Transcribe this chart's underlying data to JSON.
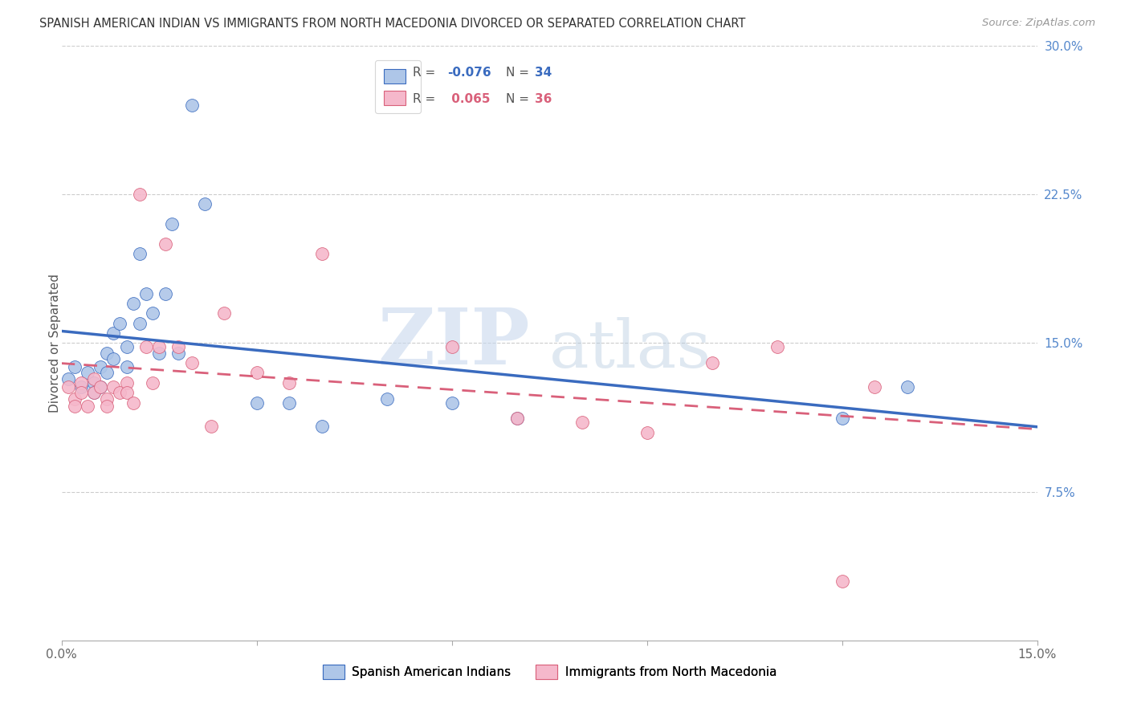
{
  "title": "SPANISH AMERICAN INDIAN VS IMMIGRANTS FROM NORTH MACEDONIA DIVORCED OR SEPARATED CORRELATION CHART",
  "source": "Source: ZipAtlas.com",
  "ylabel": "Divorced or Separated",
  "legend_blue_r": "-0.076",
  "legend_blue_n": "34",
  "legend_pink_r": "0.065",
  "legend_pink_n": "36",
  "legend_blue_label": "Spanish American Indians",
  "legend_pink_label": "Immigrants from North Macedonia",
  "blue_color": "#aec6e8",
  "pink_color": "#f5b8cb",
  "blue_line_color": "#3a6bbf",
  "pink_line_color": "#d9607a",
  "watermark_zip": "ZIP",
  "watermark_atlas": "atlas",
  "blue_x": [
    0.001,
    0.002,
    0.003,
    0.004,
    0.005,
    0.005,
    0.006,
    0.006,
    0.007,
    0.007,
    0.008,
    0.008,
    0.009,
    0.01,
    0.01,
    0.011,
    0.012,
    0.012,
    0.013,
    0.014,
    0.015,
    0.016,
    0.017,
    0.018,
    0.02,
    0.022,
    0.03,
    0.035,
    0.04,
    0.05,
    0.06,
    0.07,
    0.12,
    0.13
  ],
  "blue_y": [
    0.132,
    0.138,
    0.128,
    0.135,
    0.13,
    0.125,
    0.138,
    0.128,
    0.145,
    0.135,
    0.155,
    0.142,
    0.16,
    0.148,
    0.138,
    0.17,
    0.195,
    0.16,
    0.175,
    0.165,
    0.145,
    0.175,
    0.21,
    0.145,
    0.27,
    0.22,
    0.12,
    0.12,
    0.108,
    0.122,
    0.12,
    0.112,
    0.112,
    0.128
  ],
  "pink_x": [
    0.001,
    0.002,
    0.002,
    0.003,
    0.003,
    0.004,
    0.005,
    0.005,
    0.006,
    0.007,
    0.007,
    0.008,
    0.009,
    0.01,
    0.01,
    0.011,
    0.012,
    0.013,
    0.014,
    0.015,
    0.016,
    0.018,
    0.02,
    0.023,
    0.025,
    0.03,
    0.035,
    0.04,
    0.06,
    0.07,
    0.08,
    0.09,
    0.1,
    0.11,
    0.12,
    0.125
  ],
  "pink_y": [
    0.128,
    0.122,
    0.118,
    0.13,
    0.125,
    0.118,
    0.132,
    0.125,
    0.128,
    0.122,
    0.118,
    0.128,
    0.125,
    0.13,
    0.125,
    0.12,
    0.225,
    0.148,
    0.13,
    0.148,
    0.2,
    0.148,
    0.14,
    0.108,
    0.165,
    0.135,
    0.13,
    0.195,
    0.148,
    0.112,
    0.11,
    0.105,
    0.14,
    0.148,
    0.03,
    0.128
  ]
}
